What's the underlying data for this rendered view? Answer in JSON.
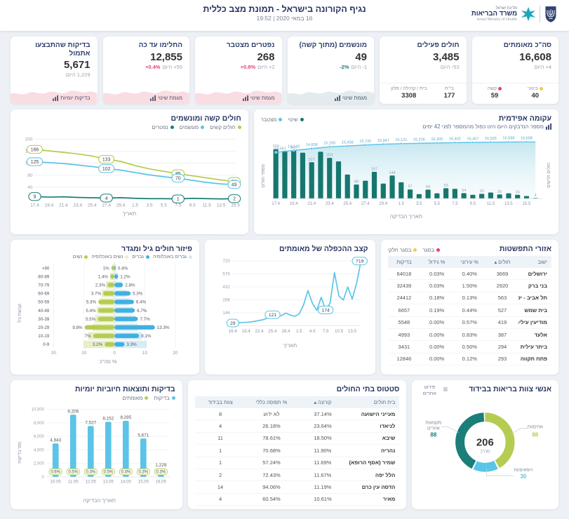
{
  "header": {
    "title": "נגיף הקורונה בישראל - תמונת מצב כללית",
    "date_line": "16 במאי 2020 | 19:52",
    "logo_state": "מדינת ישראל",
    "logo_ministry": "משרד הבריאות",
    "logo_english": "Israel Ministry of Health"
  },
  "kpis": [
    {
      "title": "סה\"כ מאומתים",
      "value": "16,608",
      "delta": "4+ היום",
      "delta_pct": "",
      "pct_color": "",
      "footer": "stats",
      "stats": [
        {
          "label": "בינוני",
          "dot": "#F3C94E",
          "value": "40"
        },
        {
          "label": "קשה",
          "dot": "#E8426F",
          "value": "59"
        }
      ]
    },
    {
      "title": "חולים פעילים",
      "value": "3,485",
      "delta": "53- היום",
      "delta_pct": "",
      "pct_color": "",
      "footer": "stats",
      "stats": [
        {
          "label": "בי\"ח",
          "dot": "",
          "value": "177"
        },
        {
          "label": "בית / קהילה / מלון",
          "dot": "",
          "value": "3308"
        }
      ]
    },
    {
      "title": "מונשמים (מתוך קשה)",
      "value": "49",
      "delta": "1- היום",
      "delta_pct": "-2%",
      "pct_color": "#1B7E78",
      "footer": "trend",
      "footer_label": "מגמת שינוי",
      "spark": "#e3ebee"
    },
    {
      "title": "נפטרים מצטבר",
      "value": "268",
      "delta": "2+ היום",
      "delta_pct": "+0.8%",
      "pct_color": "#E8426F",
      "footer": "trend",
      "footer_label": "מגמת שינוי",
      "spark": "#f9dde2"
    },
    {
      "title": "החלימו עד כה",
      "value": "12,855",
      "delta": "55+ היום",
      "delta_pct": "+0.4%",
      "pct_color": "#E8426F",
      "footer": "trend",
      "footer_label": "מגמת שינוי",
      "spark": "#f9dde2"
    },
    {
      "title": "בדיקות שהתבצעו אתמול",
      "value": "5,671",
      "delta": "1,229 היום",
      "delta_pct": "",
      "pct_color": "",
      "footer": "trend",
      "footer_label": "בדיקות יומיות",
      "spark": "#f9dde2"
    }
  ],
  "chart_data": [
    {
      "id": "epidemic_curve",
      "type": "bar+line",
      "title": "עקומה אפידמית",
      "subtitle": "מספר הנדבקים היום הינו כפול מהמספר לפני 42 ימים",
      "legend": [
        {
          "label": "שינוי",
          "color": "#17776F"
        },
        {
          "label": "מצטבר",
          "color": "#5BC4E8"
        }
      ],
      "x_ticks": [
        "17.4",
        "19.4",
        "21.4",
        "23.4",
        "25.4",
        "27.4",
        "29.4",
        "1.5",
        "3.5",
        "5.5",
        "7.5",
        "9.5",
        "11.5",
        "13.5",
        "15.5"
      ],
      "bar_color": "#17776F",
      "line_color": "#5BC4E8",
      "bars": [
        309,
        298,
        301,
        286,
        227,
        292,
        254,
        232,
        150,
        88,
        112,
        167,
        94,
        144,
        102,
        57,
        28,
        56,
        33,
        65,
        61,
        34,
        24,
        30,
        38,
        26,
        33,
        24,
        16,
        4
      ],
      "bar_labels": {
        "0": "309",
        "2": "301",
        "4": "227",
        "6": "254",
        "9": "88",
        "11": "167",
        "13": "144",
        "15": "57",
        "17": "56",
        "19": "65",
        "21": "34",
        "23": "30",
        "25": "26",
        "27": "24",
        "29": "4"
      },
      "line": [
        13561,
        13850,
        14143,
        14400,
        14658,
        14920,
        15190,
        15315,
        15438,
        15580,
        15720,
        15835,
        15947,
        16035,
        16121,
        16165,
        16206,
        16256,
        16305,
        16355,
        16402,
        16430,
        16457,
        16490,
        16525,
        16557,
        16588,
        16598,
        16608,
        16608
      ],
      "line_labels": [
        "13,561",
        "14,143",
        "14,658",
        "15,190",
        "15,438",
        "15,720",
        "15,947",
        "16,121",
        "16,206",
        "16,305",
        "16,402",
        "16,457",
        "16,525",
        "16,588",
        "16,608"
      ],
      "line_label_indices": [
        0,
        2,
        4,
        6,
        8,
        10,
        12,
        14,
        16,
        18,
        20,
        22,
        24,
        26,
        28
      ],
      "ylabel_right": "חולים חדשים",
      "ylabel_left": "מספר חולים",
      "xlabel": "תאריך הבדיקה"
    },
    {
      "id": "severe_ventilated",
      "type": "line",
      "title": "חולים קשה ומונשמים",
      "x": [
        "17.4",
        "19.4",
        "21.4",
        "23.4",
        "25.4",
        "27.4",
        "29.4",
        "1.5",
        "3.5",
        "5.5",
        "7.5",
        "9.5",
        "11.5",
        "13.5",
        "15.5"
      ],
      "series": [
        {
          "name": "חולים קשים",
          "color": "#B5CC52",
          "values": [
            166,
            161,
            156,
            151,
            144,
            133,
            126,
            112,
            101,
            93,
            85,
            78,
            71,
            64,
            59
          ]
        },
        {
          "name": "מונשמים",
          "color": "#5BC4E8",
          "values": [
            125,
            122,
            119,
            114,
            109,
            102,
            97,
            89,
            81,
            75,
            70,
            63,
            56,
            51,
            49
          ]
        },
        {
          "name": "נפטרים",
          "color": "#1B7E78",
          "values": [
            9,
            7,
            8,
            6,
            5,
            4,
            5,
            3,
            2,
            2,
            1,
            3,
            2,
            1,
            2
          ]
        }
      ],
      "callout_indices": [
        0,
        5,
        10,
        14
      ],
      "yticks": [
        40,
        80,
        120,
        160,
        200
      ],
      "ylim": [
        0,
        210
      ],
      "xlabel": "תאריך"
    },
    {
      "id": "age_gender",
      "type": "pyramid",
      "title": "פיזור חולים גיל ומגדר",
      "legend": [
        {
          "label": "גברים באוכלוסיה",
          "color": "#CFE8F6"
        },
        {
          "label": "גברים",
          "color": "#41B0E0"
        },
        {
          "label": "נשים באוכלוסיה",
          "color": "#E7EEC8"
        },
        {
          "label": "נשים",
          "color": "#B5CC52"
        }
      ],
      "groups": [
        "+90",
        "80-89",
        "70-79",
        "60-69",
        "50-59",
        "40-49",
        "30-39",
        "20-29",
        "10-19",
        "0-9"
      ],
      "women_pct": [
        1,
        1.4,
        2.3,
        3.7,
        5.3,
        5.4,
        5.5,
        9.8,
        7,
        3.2
      ],
      "women_labels": [
        "1%",
        "1.4%",
        "2.3%",
        "3.7%",
        "5.3%",
        "5.4%",
        "5.5%",
        "9.8%",
        "7%",
        "3.2%"
      ],
      "men_pct": [
        0.4,
        1.2,
        2.8,
        5.3,
        6.4,
        6.7,
        7.7,
        13.3,
        8.1,
        3.3
      ],
      "men_labels": [
        "0.4%",
        "1.2%",
        "2.8%",
        "5.3%",
        "6.4%",
        "6.7%",
        "7.7%",
        "13.3%",
        "8.1%",
        "3.3%"
      ],
      "women_pop_pct": [
        0.7,
        1.4,
        2.8,
        4.2,
        4.8,
        5.8,
        6.4,
        7.2,
        8.6,
        10.2
      ],
      "men_pop_pct": [
        0.5,
        1.1,
        2.4,
        4.0,
        4.8,
        6.0,
        6.8,
        7.6,
        9.0,
        10.6
      ],
      "xticks": [
        "20",
        "10",
        "0",
        "10",
        "20"
      ],
      "xlim": 20,
      "xlabel": "% סה\"כ",
      "ylabel": "קבוצת גיל"
    },
    {
      "id": "doubling_rate",
      "type": "line",
      "title": "קצב ההכפלה של מאומתים",
      "color": "#5BC4E8",
      "x_ticks": [
        "16.4",
        "19.4",
        "22.4",
        "25.4",
        "28.4",
        "1.5",
        "4.5",
        "7.5",
        "10.5",
        "13.5"
      ],
      "values": [
        29,
        31,
        34,
        37,
        41,
        48,
        58,
        68,
        88,
        121,
        102,
        112,
        140,
        118,
        104,
        128,
        230,
        390,
        250,
        170,
        315,
        174,
        250,
        590,
        330,
        285,
        430,
        295,
        470,
        719
      ],
      "callouts": [
        {
          "index": 0,
          "label": "29"
        },
        {
          "index": 9,
          "label": "121"
        },
        {
          "index": 21,
          "label": "174"
        },
        {
          "index": 29,
          "label": "719"
        }
      ],
      "yticks": [
        144,
        288,
        432,
        576,
        720
      ],
      "ylim": [
        0,
        760
      ],
      "xlabel": "תאריך"
    },
    {
      "id": "spread_areas",
      "type": "table",
      "title": "אזורי התפשטות",
      "legend": [
        {
          "label": "בסגר",
          "color": "#E8426F"
        },
        {
          "label": "בסגר חלקי",
          "color": "#F3C94E"
        }
      ],
      "columns": [
        "ישוב",
        "חולים ▴",
        "% עירוני",
        "% גידול",
        "בדיקות"
      ],
      "rows": [
        [
          "ירושלים",
          "3669",
          "0.40%",
          "0.03%",
          "64018"
        ],
        [
          "בני ברק",
          "2920",
          "1.50%",
          "0.03%",
          "32439"
        ],
        [
          "תל אביב - יפו",
          "563",
          "0.13%",
          "0.18%",
          "24412"
        ],
        [
          "בית שמש",
          "527",
          "0.44%",
          "0.19%",
          "6657"
        ],
        [
          "מודיעין עילית",
          "419",
          "0.57%",
          "0.00%",
          "5548"
        ],
        [
          "אלעד",
          "387",
          "0.83%",
          "0.00%",
          "4993"
        ],
        [
          "ביתר עילית",
          "294",
          "0.50%",
          "0.00%",
          "3431"
        ],
        [
          "פתח תקווה",
          "293",
          "0.12%",
          "0.00%",
          "12846"
        ]
      ]
    },
    {
      "id": "daily_tests",
      "type": "bar",
      "title": "בדיקות ותוצאות חיוביות יומיות",
      "legend": [
        {
          "label": "בדיקות",
          "color": "#5BC4E8"
        },
        {
          "label": "מאומתים",
          "color": "#B5CC52"
        }
      ],
      "categories": [
        "10.05",
        "11.05",
        "12.05",
        "13.05",
        "14.05",
        "15.05",
        "16.05"
      ],
      "values": [
        4943,
        9206,
        7527,
        8152,
        8295,
        5671,
        1229
      ],
      "value_labels": [
        "4,943",
        "9,206",
        "7,527",
        "8,152",
        "8,295",
        "5,671",
        "1,229"
      ],
      "positive_rate": [
        "0.6%",
        "0.5%",
        "0.3%",
        "0.5%",
        "0.3%",
        "0.3%",
        "0.3%"
      ],
      "ytick_labels": [
        "0",
        "2,000",
        "4,000",
        "6,000",
        "8,000",
        "10,000"
      ],
      "ylim": [
        0,
        10000
      ],
      "ylabel": "מס' בדיקות",
      "xlabel": "תאריך הבדיקה"
    },
    {
      "id": "hospital_status",
      "type": "table",
      "title": "סטטוס בתי החולים",
      "columns": [
        "בית חולים",
        "קורונה ▴",
        "% תפוסה כללי",
        "צוות בבידוד"
      ],
      "rows": [
        [
          "מעייני הישועה",
          "37.14%",
          "לא ידוע",
          "8"
        ],
        [
          "לניאדו",
          "23.64%",
          "26.18%",
          "4"
        ],
        [
          "שיבא",
          "18.50%",
          "78.61%",
          "11"
        ],
        [
          "נהריה",
          "11.90%",
          "70.68%",
          "1"
        ],
        [
          "שמיר (אסף הרופא)",
          "11.69%",
          "57.24%",
          "1"
        ],
        [
          "הלל יפה",
          "11.67%",
          "72.43%",
          "2"
        ],
        [
          "הדסה עין כרם",
          "11.19%",
          "94.06%",
          "14"
        ],
        [
          "מאיר",
          "10.61%",
          "60.54%",
          "4"
        ]
      ]
    },
    {
      "id": "staff_isolation",
      "type": "pie",
      "title": "אנשי צוות בריאות בבידוד",
      "menu_label": "פירוט אחרים",
      "total": "206",
      "total_label": "סה\"כ",
      "slices": [
        {
          "label": "אחים/ות",
          "value": 88,
          "color": "#B5CC52"
        },
        {
          "label": "רופאים/ות",
          "value": 30,
          "color": "#5BC4E8"
        },
        {
          "label": "מקצועות אחרים",
          "value": 88,
          "color": "#1B7E78"
        }
      ]
    }
  ]
}
